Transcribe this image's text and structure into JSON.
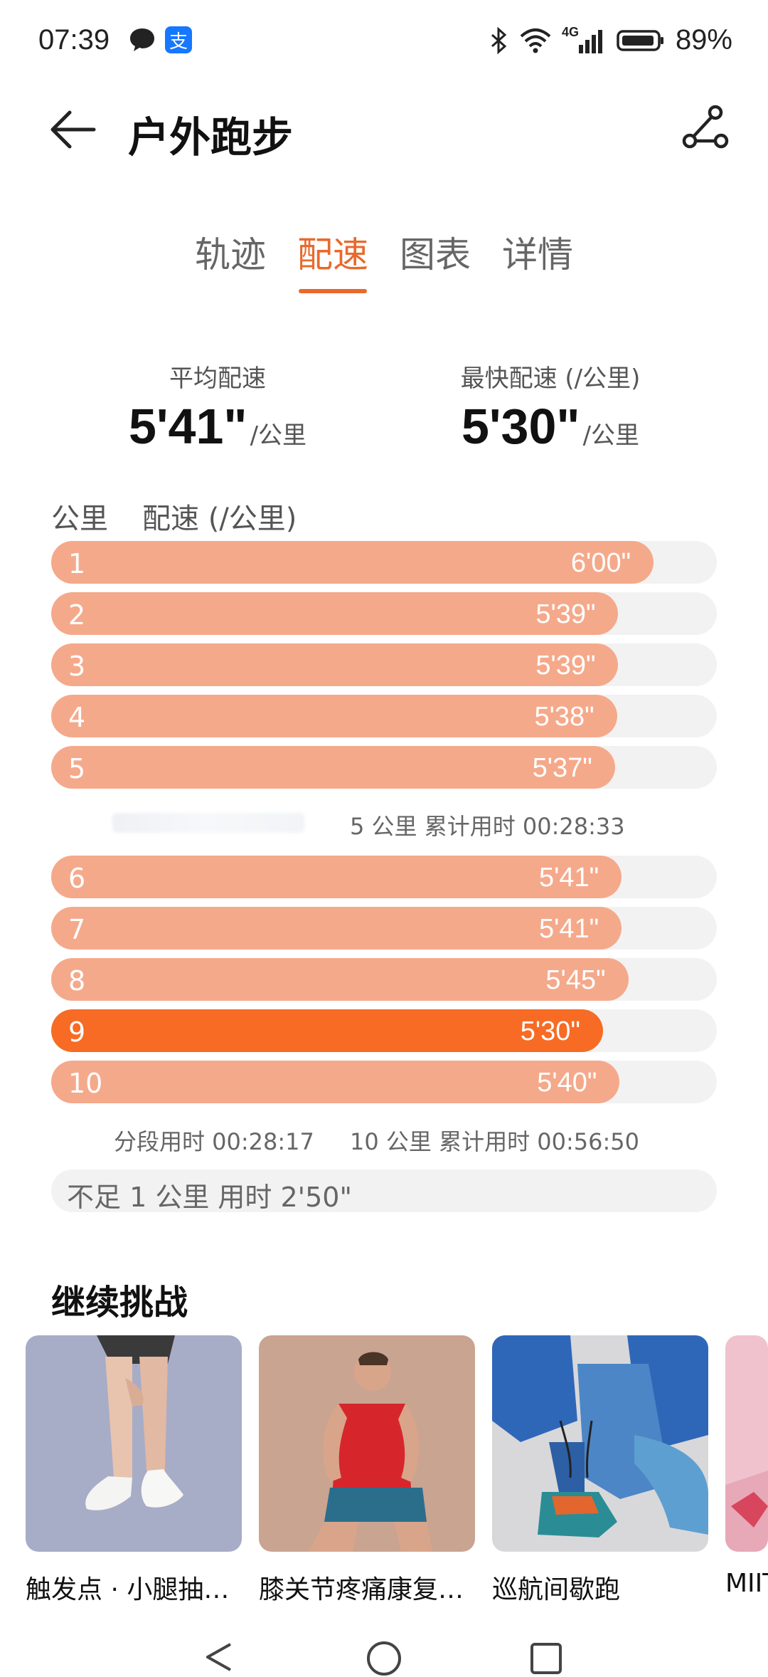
{
  "status_bar": {
    "time": "07:39",
    "network": "4G",
    "battery": "89%"
  },
  "header": {
    "title": "户外跑步",
    "back_icon": "back-arrow-icon",
    "share_icon": "route-share-icon"
  },
  "tabs": [
    {
      "label": "轨迹",
      "active": false
    },
    {
      "label": "配速",
      "active": true
    },
    {
      "label": "图表",
      "active": false
    },
    {
      "label": "详情",
      "active": false
    }
  ],
  "summary": {
    "avg_label": "平均配速",
    "avg_value": "5'41\"",
    "avg_unit": "/公里",
    "fast_label": "最快配速 (/公里)",
    "fast_value": "5'30\"",
    "fast_unit": "/公里"
  },
  "table": {
    "col_km": "公里",
    "col_pace": "配速 (/公里)"
  },
  "splits": [
    {
      "km": "1",
      "pace": "6'00\"",
      "fill": 0.905,
      "highlight": false
    },
    {
      "km": "2",
      "pace": "5'39\"",
      "fill": 0.852,
      "highlight": false
    },
    {
      "km": "3",
      "pace": "5'39\"",
      "fill": 0.852,
      "highlight": false
    },
    {
      "km": "4",
      "pace": "5'38\"",
      "fill": 0.85,
      "highlight": false
    },
    {
      "km": "5",
      "pace": "5'37\"",
      "fill": 0.847,
      "highlight": false
    },
    {
      "km": "6",
      "pace": "5'41\"",
      "fill": 0.857,
      "highlight": false
    },
    {
      "km": "7",
      "pace": "5'41\"",
      "fill": 0.857,
      "highlight": false
    },
    {
      "km": "8",
      "pace": "5'45\"",
      "fill": 0.867,
      "highlight": false
    },
    {
      "km": "9",
      "pace": "5'30\"",
      "fill": 0.829,
      "highlight": true
    },
    {
      "km": "10",
      "pace": "5'40\"",
      "fill": 0.854,
      "highlight": false
    }
  ],
  "notes": {
    "cumulative_5": "5 公里  累计用时 00:28:33",
    "segment_10": "分段用时 00:28:17",
    "cumulative_10": "10 公里  累计用时 00:56:50",
    "remainder": "不足 1 公里  用时 2'50\""
  },
  "challenge": {
    "title": "继续挑战",
    "cards": [
      {
        "caption": "触发点 · 小腿抽…"
      },
      {
        "caption": "膝关节疼痛康复…"
      },
      {
        "caption": "巡航间歇跑"
      },
      {
        "caption": "MIIT"
      }
    ]
  },
  "colors": {
    "accent": "#e9692c",
    "bar": "#f5a98b",
    "bar_highlight": "#f76b25",
    "track": "#f2f2f2"
  }
}
